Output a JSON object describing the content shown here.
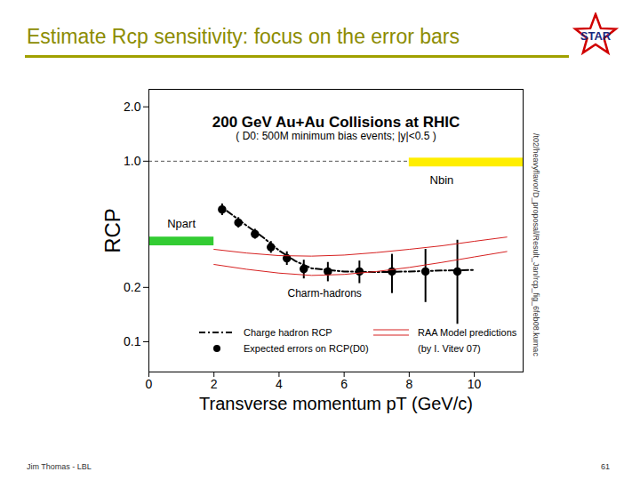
{
  "title": "Estimate Rcp sensitivity: focus on the error bars",
  "logo": "STAR",
  "footer_left": "Jim Thomas - LBL",
  "page_number": "61",
  "chart_data": {
    "type": "scatter",
    "title": "200 GeV Au+Au Collisions at RHIC",
    "subtitle": "( D0: 500M minimum bias events; |y|<0.5 )",
    "x_label": "Transverse momentum pT (GeV/c)",
    "y_label": "RCP",
    "log": "y",
    "xlim": [
      0,
      11.5
    ],
    "ylim": [
      0.068,
      2.5
    ],
    "xticks": [
      0,
      2,
      4,
      6,
      8,
      10
    ],
    "yticks": [
      {
        "value": 0.1,
        "label": "0.1"
      },
      {
        "value": 0.2,
        "label": "0.2"
      },
      {
        "value": 1,
        "label": "1.0"
      },
      {
        "value": 2,
        "label": "2.0"
      }
    ],
    "legend": "lower",
    "legend_note": "(by I. Vitev 07)",
    "series": [
      {
        "name": "Charge hadron RCP",
        "type": "line",
        "line_style": "dashdot",
        "color": "#000000",
        "x": [
          2.4,
          3,
          3.5,
          4,
          4.5,
          5,
          6,
          7,
          8,
          9,
          10
        ],
        "values": [
          0.53,
          0.44,
          0.38,
          0.32,
          0.28,
          0.255,
          0.245,
          0.243,
          0.245,
          0.248,
          0.25
        ]
      },
      {
        "name": "Expected errors on RCP(D0)",
        "type": "scatter",
        "marker": "circle",
        "color": "#000000",
        "x": [
          2.25,
          2.75,
          3.26,
          3.75,
          4.24,
          4.76,
          5.5,
          6.47,
          7.47,
          8.5,
          9.48
        ],
        "values": [
          0.54,
          0.457,
          0.395,
          0.334,
          0.29,
          0.253,
          0.245,
          0.245,
          0.245,
          0.245,
          0.245
        ],
        "errors": [
          0.04,
          0.03,
          0.025,
          0.025,
          0.025,
          0.03,
          0.03,
          0.035,
          0.06,
          0.08,
          0.12
        ]
      },
      {
        "name": "RAA Model predictions",
        "type": "band_lines",
        "line_style": "solid",
        "color": "#d62020",
        "x": [
          2,
          3,
          4,
          5,
          6,
          7,
          8,
          9,
          10,
          11
        ],
        "lower": [
          0.268,
          0.252,
          0.24,
          0.233,
          0.236,
          0.245,
          0.258,
          0.275,
          0.295,
          0.316
        ],
        "upper": [
          0.325,
          0.31,
          0.3,
          0.298,
          0.302,
          0.312,
          0.325,
          0.34,
          0.36,
          0.38
        ]
      }
    ],
    "reference_line": {
      "y": 1,
      "x": [
        0,
        8
      ],
      "line_style": "dashed"
    },
    "bands": [
      {
        "label": "Npart",
        "color": "#33cc33",
        "x": [
          0,
          2
        ],
        "y": [
          0.34,
          0.38
        ],
        "label_at": [
          1.0,
          0.45
        ]
      },
      {
        "label": "Nbin",
        "color": "#ffee00",
        "x": [
          8,
          11.5
        ],
        "y": [
          0.93,
          1.04
        ],
        "label_at": [
          9.0,
          0.78
        ]
      }
    ],
    "annotations": [
      {
        "text": "Charm-hadrons",
        "x": 5.4,
        "y": 0.185
      }
    ],
    "side_note": "/t02/heavyflavor/D_proposal/Result_Jan/rcp_fig_6feb08.kumac"
  }
}
